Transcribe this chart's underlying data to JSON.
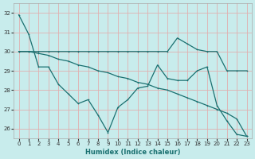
{
  "xlabel": "Humidex (Indice chaleur)",
  "xlim": [
    -0.5,
    23.5
  ],
  "ylim": [
    25.5,
    32.5
  ],
  "yticks": [
    26,
    27,
    28,
    29,
    30,
    31,
    32
  ],
  "xticks": [
    0,
    1,
    2,
    3,
    4,
    5,
    6,
    7,
    8,
    9,
    10,
    11,
    12,
    13,
    14,
    15,
    16,
    17,
    18,
    19,
    20,
    21,
    22,
    23
  ],
  "xtick_labels": [
    "0",
    "1",
    "2",
    "3",
    "4",
    "5",
    "6",
    "7",
    "8",
    "9",
    "10",
    "11",
    "12",
    "13",
    "14",
    "15",
    "16",
    "17",
    "18",
    "19",
    "20",
    "21",
    "22",
    "23"
  ],
  "bg_color": "#c8ecec",
  "grid_color": "#e0b0b0",
  "line_color": "#1a7070",
  "lines": [
    {
      "x": [
        0,
        1,
        2,
        3,
        4,
        5,
        6,
        7,
        8,
        9,
        10,
        11,
        12,
        13,
        14,
        15,
        16,
        17,
        18,
        19,
        20,
        21,
        22,
        23
      ],
      "y": [
        31.9,
        30.9,
        29.2,
        29.2,
        28.3,
        27.8,
        27.3,
        27.5,
        26.7,
        25.8,
        27.1,
        27.5,
        28.1,
        28.2,
        29.3,
        28.6,
        28.5,
        28.5,
        29.0,
        29.2,
        27.2,
        26.4,
        25.7,
        25.6
      ]
    },
    {
      "x": [
        0,
        1,
        2,
        3,
        4,
        5,
        6,
        7,
        8,
        9,
        10,
        11,
        12,
        13,
        14,
        15,
        16,
        17,
        18,
        19,
        20,
        21,
        22,
        23
      ],
      "y": [
        30.0,
        30.0,
        29.9,
        29.8,
        29.6,
        29.5,
        29.3,
        29.2,
        29.0,
        28.9,
        28.7,
        28.6,
        28.4,
        28.3,
        28.1,
        28.0,
        27.8,
        27.6,
        27.4,
        27.2,
        27.0,
        26.8,
        26.5,
        25.6
      ]
    },
    {
      "x": [
        0,
        1,
        2,
        3,
        4,
        5,
        6,
        7,
        8,
        9,
        10,
        11,
        12,
        13,
        14,
        15,
        16,
        17,
        18,
        19,
        20,
        21,
        22,
        23
      ],
      "y": [
        30.0,
        30.0,
        30.0,
        30.0,
        30.0,
        30.0,
        30.0,
        30.0,
        30.0,
        30.0,
        30.0,
        30.0,
        30.0,
        30.0,
        30.0,
        30.0,
        30.7,
        30.4,
        30.1,
        30.0,
        30.0,
        29.0,
        29.0,
        29.0
      ]
    }
  ]
}
